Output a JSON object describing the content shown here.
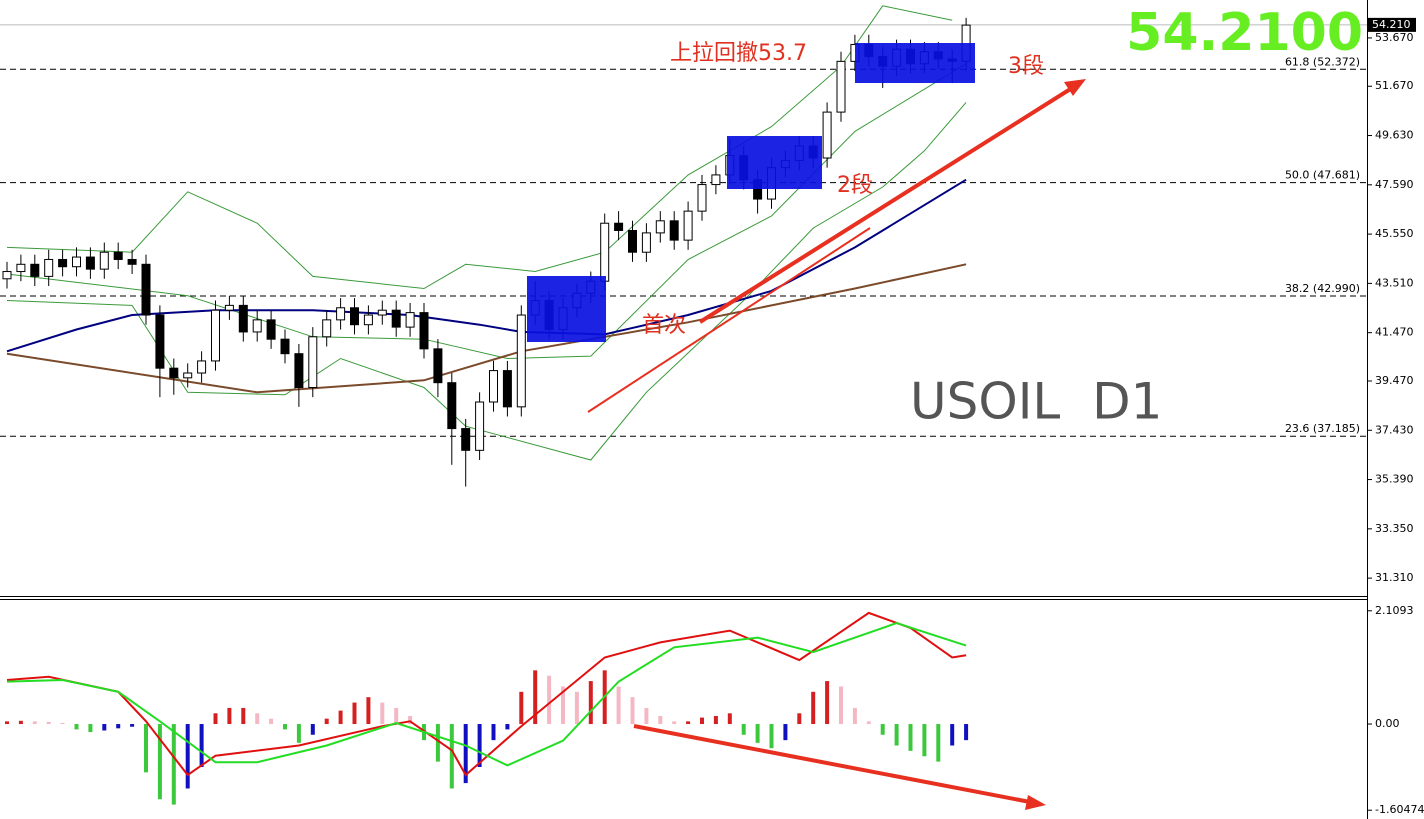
{
  "chart_data": [
    {
      "type": "candlestick",
      "title": "USOIL  D1",
      "price_label": {
        "value": 54.21,
        "label": "54.2100"
      },
      "last_price": {
        "value": 54.21,
        "label": "54.210"
      },
      "bull_color": "#ffffff",
      "bear_color": "#000000",
      "open": [
        43.7,
        44.0,
        44.3,
        43.8,
        44.5,
        44.2,
        44.6,
        44.1,
        44.8,
        44.5,
        44.3,
        42.2,
        40.0,
        39.6,
        39.8,
        40.3,
        42.4,
        42.6,
        41.5,
        42.0,
        41.2,
        40.6,
        39.2,
        41.3,
        42.0,
        42.5,
        41.8,
        42.2,
        42.4,
        41.7,
        42.3,
        40.8,
        39.4,
        37.5,
        36.6,
        38.6,
        39.9,
        38.4,
        42.2,
        42.8,
        41.6,
        42.5,
        43.1,
        43.6,
        46.0,
        45.7,
        44.8,
        45.6,
        46.1,
        45.3,
        46.5,
        47.6,
        48.0,
        48.8,
        47.8,
        47.0,
        48.3,
        48.6,
        49.2,
        48.7,
        50.6,
        52.7,
        53.4,
        52.9,
        52.5,
        53.2,
        52.6,
        53.1,
        52.8,
        52.7
      ],
      "high": [
        44.4,
        44.7,
        44.7,
        44.9,
        44.9,
        45.0,
        45.0,
        45.2,
        45.2,
        44.9,
        44.7,
        42.6,
        40.4,
        40.2,
        40.7,
        42.8,
        43.0,
        43.0,
        42.4,
        42.4,
        41.6,
        41.0,
        41.7,
        42.4,
        42.9,
        42.9,
        42.6,
        42.8,
        42.8,
        42.7,
        42.7,
        41.2,
        39.8,
        37.9,
        39.0,
        40.3,
        40.3,
        42.6,
        43.6,
        43.2,
        42.9,
        43.5,
        44.0,
        46.4,
        46.5,
        46.1,
        46.0,
        46.5,
        46.5,
        46.9,
        48.0,
        48.4,
        49.5,
        49.2,
        48.2,
        48.7,
        49.0,
        49.6,
        49.6,
        51.0,
        53.1,
        53.8,
        53.8,
        53.3,
        53.6,
        53.6,
        53.5,
        53.5,
        53.2,
        54.5
      ],
      "low": [
        43.3,
        43.6,
        43.4,
        43.4,
        43.8,
        43.8,
        43.7,
        43.7,
        44.1,
        43.9,
        41.8,
        38.8,
        38.9,
        39.2,
        39.4,
        39.9,
        42.0,
        41.1,
        41.1,
        40.8,
        40.2,
        38.4,
        38.8,
        40.9,
        41.6,
        41.4,
        41.4,
        41.8,
        41.3,
        41.3,
        40.4,
        38.8,
        36.0,
        35.1,
        36.2,
        38.2,
        38.0,
        38.0,
        41.8,
        41.2,
        41.2,
        42.1,
        42.7,
        43.2,
        45.3,
        44.4,
        44.4,
        45.2,
        44.9,
        44.9,
        46.1,
        47.2,
        47.6,
        47.4,
        46.4,
        46.6,
        47.9,
        48.2,
        48.3,
        48.3,
        50.2,
        52.3,
        52.5,
        51.6,
        52.1,
        52.2,
        52.2,
        52.4,
        51.8,
        52.3
      ],
      "close": [
        44.0,
        44.3,
        43.8,
        44.5,
        44.2,
        44.6,
        44.1,
        44.8,
        44.5,
        44.3,
        42.2,
        40.0,
        39.6,
        39.8,
        40.3,
        42.4,
        42.6,
        41.5,
        42.0,
        41.2,
        40.6,
        39.2,
        41.3,
        42.0,
        42.5,
        41.8,
        42.2,
        42.4,
        41.7,
        42.3,
        40.8,
        39.4,
        37.5,
        36.6,
        38.6,
        39.9,
        38.4,
        42.2,
        42.8,
        41.6,
        42.5,
        43.1,
        43.6,
        46.0,
        45.7,
        44.8,
        45.6,
        46.1,
        45.3,
        46.5,
        47.6,
        48.0,
        48.8,
        47.8,
        47.0,
        48.3,
        48.6,
        49.2,
        48.7,
        50.6,
        52.7,
        53.4,
        52.9,
        52.5,
        53.2,
        52.6,
        53.1,
        52.8,
        52.7,
        54.2
      ],
      "overlays": [
        {
          "color": "#3a9a3a",
          "x": [
            0,
            9,
            13,
            18,
            22,
            30,
            33,
            38,
            43,
            49,
            55,
            60,
            63,
            68
          ],
          "values": [
            45.0,
            44.8,
            47.3,
            46.0,
            43.8,
            43.3,
            44.3,
            44.0,
            44.8,
            48.0,
            50.0,
            52.5,
            55.0,
            54.4
          ]
        },
        {
          "color": "#3a9a3a",
          "x": [
            0,
            13,
            22,
            30,
            36,
            42,
            49,
            55,
            61,
            69
          ],
          "values": [
            43.9,
            43.0,
            41.3,
            41.2,
            40.4,
            40.5,
            44.5,
            46.3,
            49.8,
            52.6
          ]
        },
        {
          "color": "#3a9a3a",
          "x": [
            0,
            9,
            13,
            20,
            24,
            30,
            33,
            42,
            46,
            53,
            58,
            63,
            66,
            69
          ],
          "values": [
            42.8,
            42.6,
            39.0,
            38.9,
            40.4,
            39.2,
            37.6,
            36.2,
            39.0,
            42.8,
            45.8,
            47.5,
            49.0,
            51.0
          ]
        },
        {
          "color": "#000080",
          "x": [
            0,
            5,
            9,
            15,
            22,
            29,
            34,
            37,
            43,
            49,
            55,
            61,
            69
          ],
          "values": [
            40.7,
            41.6,
            42.2,
            42.4,
            42.4,
            42.2,
            41.8,
            41.5,
            41.4,
            42.2,
            43.2,
            45.0,
            47.8
          ]
        },
        {
          "color": "#7b4a2a",
          "x": [
            0,
            18,
            30,
            37,
            49,
            55,
            61,
            69
          ],
          "values": [
            40.6,
            39.0,
            39.5,
            40.7,
            41.9,
            42.6,
            43.3,
            44.3
          ]
        }
      ],
      "fib_levels": [
        {
          "value": 52.372,
          "label": "61.8 (52.372)"
        },
        {
          "value": 47.681,
          "label": "50.0 (47.681)"
        },
        {
          "value": 42.99,
          "label": "38.2 (42.990)"
        },
        {
          "value": 37.185,
          "label": "23.6 (37.185)"
        }
      ],
      "annotations": [
        "上拉回撤53.7",
        "3段",
        "2段",
        "首次"
      ],
      "ylim": [
        30.57,
        55.24
      ],
      "yticks": [
        {
          "value": 53.67,
          "label": "53.670"
        },
        {
          "value": 51.67,
          "label": "51.670"
        },
        {
          "value": 49.63,
          "label": "49.630"
        },
        {
          "value": 47.59,
          "label": "47.590"
        },
        {
          "value": 45.55,
          "label": "45.550"
        },
        {
          "value": 43.51,
          "label": "43.510"
        },
        {
          "value": 41.47,
          "label": "41.470"
        },
        {
          "value": 39.47,
          "label": "39.470"
        },
        {
          "value": 37.43,
          "label": "37.430"
        },
        {
          "value": 35.39,
          "label": "35.390"
        },
        {
          "value": 33.35,
          "label": "33.350"
        },
        {
          "value": 31.31,
          "label": "31.310"
        }
      ]
    },
    {
      "type": "macd",
      "histogram": [
        0.05,
        0.06,
        0.05,
        0.04,
        0.02,
        -0.1,
        -0.15,
        -0.12,
        -0.08,
        -0.05,
        -0.9,
        -1.4,
        -1.5,
        -1.2,
        -0.8,
        0.2,
        0.3,
        0.3,
        0.2,
        0.1,
        -0.1,
        -0.35,
        -0.2,
        0.1,
        0.25,
        0.4,
        0.5,
        0.4,
        0.3,
        0.15,
        -0.3,
        -0.7,
        -1.2,
        -1.1,
        -0.8,
        -0.3,
        -0.1,
        0.6,
        1.0,
        0.9,
        0.7,
        0.6,
        0.8,
        1.0,
        0.7,
        0.5,
        0.3,
        0.15,
        0.05,
        0.05,
        0.12,
        0.15,
        0.2,
        -0.2,
        -0.35,
        -0.45,
        -0.3,
        0.2,
        0.6,
        0.8,
        0.7,
        0.3,
        0.05,
        -0.2,
        -0.4,
        -0.5,
        -0.6,
        -0.7,
        -0.4,
        -0.3
      ],
      "histogram_colors": {
        "up_positive": "#d42020",
        "down_positive": "#f4b8c4",
        "down_negative": "#3cc83c",
        "up_negative": "#1010c0"
      },
      "series": [
        {
          "color": "#e01010",
          "x": [
            0,
            3,
            8,
            10,
            13,
            15,
            21,
            27,
            29,
            32,
            33,
            37,
            43,
            47,
            52,
            57,
            62,
            65,
            68,
            69
          ],
          "values": [
            0.82,
            0.88,
            0.6,
            0.05,
            -0.95,
            -0.59,
            -0.4,
            -0.04,
            0.05,
            -0.49,
            -0.95,
            -0.04,
            1.24,
            1.52,
            1.74,
            1.19,
            2.07,
            1.79,
            1.24,
            1.28
          ]
        },
        {
          "color": "#22dd22",
          "x": [
            0,
            4,
            8,
            11,
            15,
            18,
            23,
            28,
            33,
            36,
            40,
            44,
            48,
            54,
            58,
            64,
            69
          ],
          "values": [
            0.79,
            0.82,
            0.6,
            0.05,
            -0.71,
            -0.71,
            -0.4,
            0.02,
            -0.4,
            -0.77,
            -0.31,
            0.79,
            1.43,
            1.61,
            1.34,
            1.88,
            1.46
          ]
        }
      ],
      "ylim": [
        -1.75,
        2.31
      ],
      "yticks": [
        2.1093,
        {
          "value": 0,
          "label": "0.00"
        },
        -1.60474
      ]
    }
  ]
}
